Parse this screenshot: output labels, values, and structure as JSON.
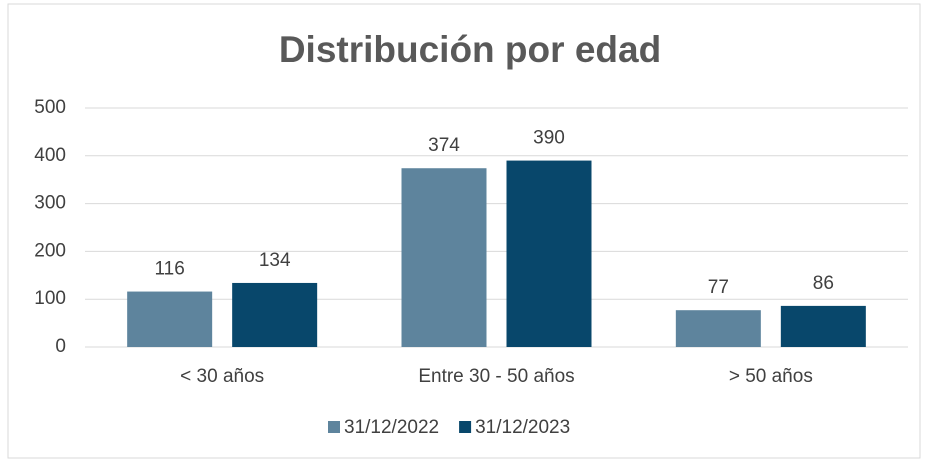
{
  "chart_data": {
    "type": "bar",
    "title": "Distribución por edad",
    "categories": [
      "< 30 años",
      "Entre 30 - 50 años",
      "> 50 años"
    ],
    "series": [
      {
        "name": "31/12/2022",
        "color": "#5e849d",
        "values": [
          116,
          374,
          77
        ]
      },
      {
        "name": "31/12/2023",
        "color": "#08476b",
        "values": [
          134,
          390,
          86
        ]
      }
    ],
    "ylim": [
      0,
      500
    ],
    "yticks": [
      0,
      100,
      200,
      300,
      400,
      500
    ],
    "grid": true,
    "legend": "bottom"
  }
}
